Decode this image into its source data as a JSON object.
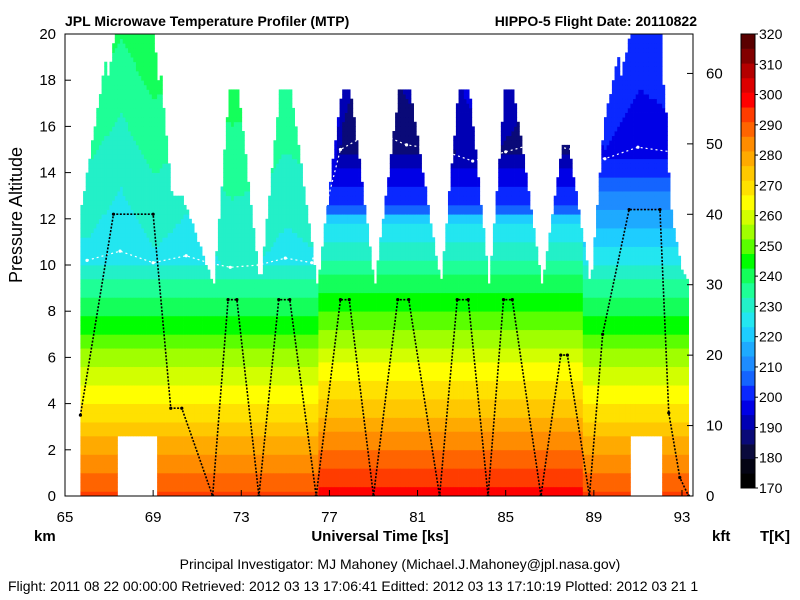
{
  "header": {
    "title_left": "JPL Microwave Temperature Profiler (MTP)",
    "title_right": "HIPPO-5  Flight Date: 20110822"
  },
  "chart_data": {
    "type": "heatmap",
    "title": "JPL Microwave Temperature Profiler (MTP)",
    "subtitle": "HIPPO-5  Flight Date: 20110822",
    "xlabel": "Universal Time [ks]",
    "ylabel": "Pressure Altitude",
    "y_unit_left": "km",
    "y_unit_right": "kft",
    "colorbar_label": "T[K]",
    "xlim": [
      65,
      93.5
    ],
    "ylim": [
      0,
      20
    ],
    "ylim_right": [
      0,
      65.6
    ],
    "x_ticks": [
      65,
      69,
      73,
      77,
      81,
      85,
      89,
      93
    ],
    "y_ticks": [
      0,
      2,
      4,
      6,
      8,
      10,
      12,
      14,
      16,
      18,
      20
    ],
    "y_ticks_right": [
      0,
      10,
      20,
      30,
      40,
      50,
      60
    ],
    "colorbar_ticks": [
      170,
      180,
      190,
      200,
      210,
      220,
      230,
      240,
      250,
      260,
      270,
      280,
      290,
      300,
      310,
      320
    ],
    "colorbar_range": [
      170,
      320
    ],
    "colormap": [
      "#000000",
      "#040414",
      "#0a0a3c",
      "#0a0a78",
      "#0000b4",
      "#0000e6",
      "#0a28ff",
      "#1464ff",
      "#1e8cff",
      "#1eaaff",
      "#1ecdff",
      "#23e6f0",
      "#23f0c8",
      "#1eff96",
      "#14ff5a",
      "#00ff00",
      "#5aff00",
      "#a0ff00",
      "#d2ff00",
      "#ffff00",
      "#ffe100",
      "#ffc800",
      "#ffaa00",
      "#ff8c00",
      "#ff6400",
      "#ff3c00",
      "#ff0000",
      "#dc0000",
      "#b40000",
      "#820000",
      "#5a0000"
    ],
    "flight_altitude_km": {
      "ut_ks": [
        65.7,
        67.2,
        69.0,
        69.8,
        70.3,
        71.7,
        72.4,
        72.8,
        73.8,
        74.7,
        75.2,
        76.4,
        77.5,
        77.9,
        79.0,
        80.1,
        80.6,
        82.0,
        82.8,
        83.3,
        84.2,
        84.9,
        85.3,
        86.6,
        87.5,
        87.8,
        88.8,
        89.4,
        90.6,
        92.0,
        92.4,
        92.9,
        93.3
      ],
      "alt_km": [
        3.5,
        12.2,
        12.2,
        3.8,
        3.8,
        0.0,
        8.5,
        8.5,
        0.0,
        8.5,
        8.5,
        0.0,
        8.5,
        8.5,
        0.0,
        8.5,
        8.5,
        0.0,
        8.5,
        8.5,
        0.0,
        8.5,
        8.5,
        0.0,
        6.1,
        6.1,
        0.0,
        7.0,
        12.4,
        12.4,
        3.6,
        0.8,
        0.0
      ]
    },
    "tropopause_km": {
      "ut_ks": [
        66.0,
        67.5,
        69.0,
        70.5,
        71.5,
        72.5,
        73.8,
        75.0,
        76.2,
        77.5,
        79.0,
        80.5,
        82.0,
        83.5,
        85.0,
        86.5,
        88.0,
        89.5,
        91.0,
        92.5
      ],
      "alt_km": [
        10.2,
        10.6,
        10.1,
        10.4,
        10.1,
        9.9,
        10.0,
        10.3,
        10.1,
        15.0,
        15.8,
        15.2,
        15.0,
        14.5,
        14.9,
        15.3,
        15.0,
        14.6,
        15.1,
        14.9
      ]
    }
  },
  "footer": {
    "investigator": "Principal Investigator: MJ Mahoney (Michael.J.Mahoney@jpl.nasa.gov)",
    "timestamps": "Flight: 2011 08 22 00:00:00   Retrieved: 2012 03 13 17:06:41   Editted: 2012 03 13 17:10:19   Plotted: 2012 03 21 1"
  }
}
